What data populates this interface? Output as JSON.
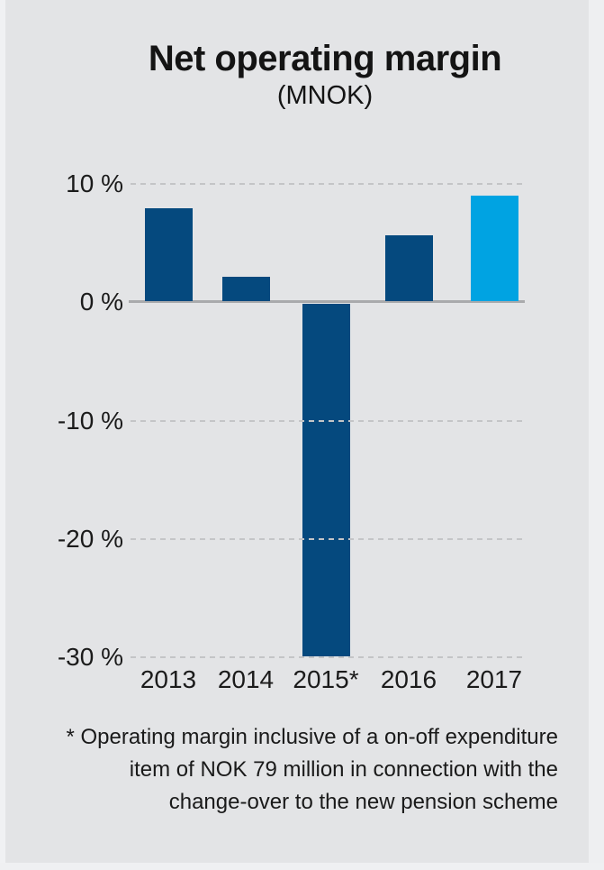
{
  "page": {
    "kind": "annual-report chart graphic"
  },
  "chart_data": {
    "type": "bar",
    "title": "Net operating margin",
    "subtitle": "(MNOK)",
    "categories": [
      "2013",
      "2014",
      "2015*",
      "2016",
      "2017"
    ],
    "values": [
      7.9,
      2.1,
      -29.8,
      5.6,
      8.9
    ],
    "unit": "%",
    "xlabel": "",
    "ylabel": "",
    "ylim": [
      -30,
      10
    ],
    "yticks": [
      10,
      0,
      -10,
      -20,
      -30
    ],
    "ytick_labels": [
      "10 %",
      "0 %",
      "-10 %",
      "-20 %",
      "-30 %"
    ],
    "grid": "horizontal dashed lines at 10, -10, -20, -30; solid gray axis at 0; gridlines drawn over bars",
    "legend": "none",
    "bar_colors": [
      "#05497E",
      "#05497E",
      "#05497E",
      "#05497E",
      "#00A3E2"
    ],
    "base_color": "#05497E",
    "highlight_color": "#00A3E2"
  },
  "footnote": {
    "lines": [
      "* Operating margin inclusive of a on-off expenditure",
      "item of NOK 79 million in connection with the",
      "change-over to the new pension scheme"
    ]
  },
  "colors": {
    "background": "#E3E4E6",
    "axis_line": "#A9AAAC",
    "gridline": "#C4C5C7",
    "text": "#1A1A1A",
    "bar_dark": "#05497E",
    "bar_light": "#00A3E2"
  }
}
